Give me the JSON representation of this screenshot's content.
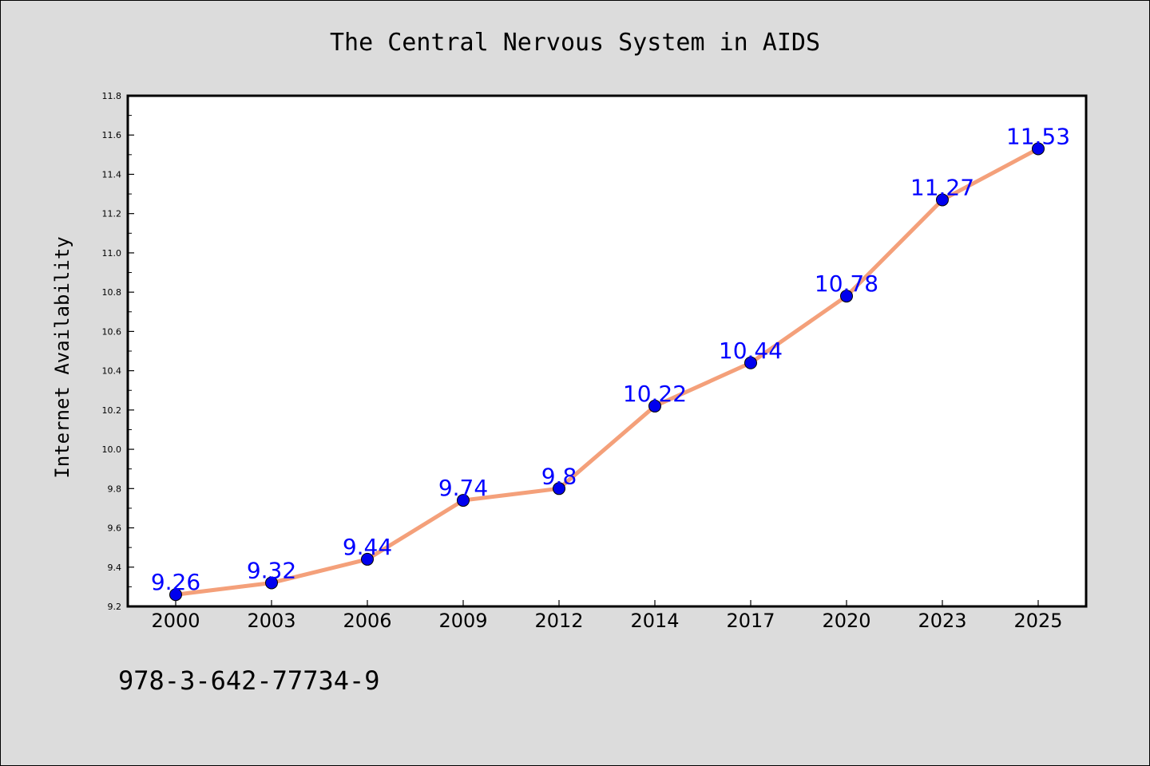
{
  "chart_data": {
    "type": "line",
    "title": "The Central Nervous System in AIDS",
    "xlabel": "",
    "ylabel": "Internet Availability",
    "categories": [
      "2000",
      "2003",
      "2006",
      "2009",
      "2012",
      "2014",
      "2017",
      "2020",
      "2023",
      "2025"
    ],
    "series": [
      {
        "values": [
          9.26,
          9.32,
          9.44,
          9.74,
          9.8,
          10.22,
          10.44,
          10.78,
          11.27,
          11.53
        ],
        "data_labels": [
          "9.26",
          "9.32",
          "9.44",
          "9.74",
          "9.8",
          "10.22",
          "10.44",
          "10.78",
          "11.27",
          "11.53"
        ]
      }
    ],
    "ylim": [
      9.2,
      11.8
    ],
    "yticks": [
      "9.2",
      "9.4",
      "9.6",
      "9.8",
      "10.0",
      "10.2",
      "10.4",
      "10.6",
      "10.8",
      "11.0",
      "11.2",
      "11.4",
      "11.6",
      "11.8"
    ],
    "grid": false,
    "legend": "none",
    "colors": {
      "line": "#f4a07a",
      "marker": "#0000ee",
      "label": "#0000ff",
      "background": "#dcdcdc",
      "plot_bg": "#ffffff"
    }
  },
  "footer": {
    "isbn": "978-3-642-77734-9"
  }
}
